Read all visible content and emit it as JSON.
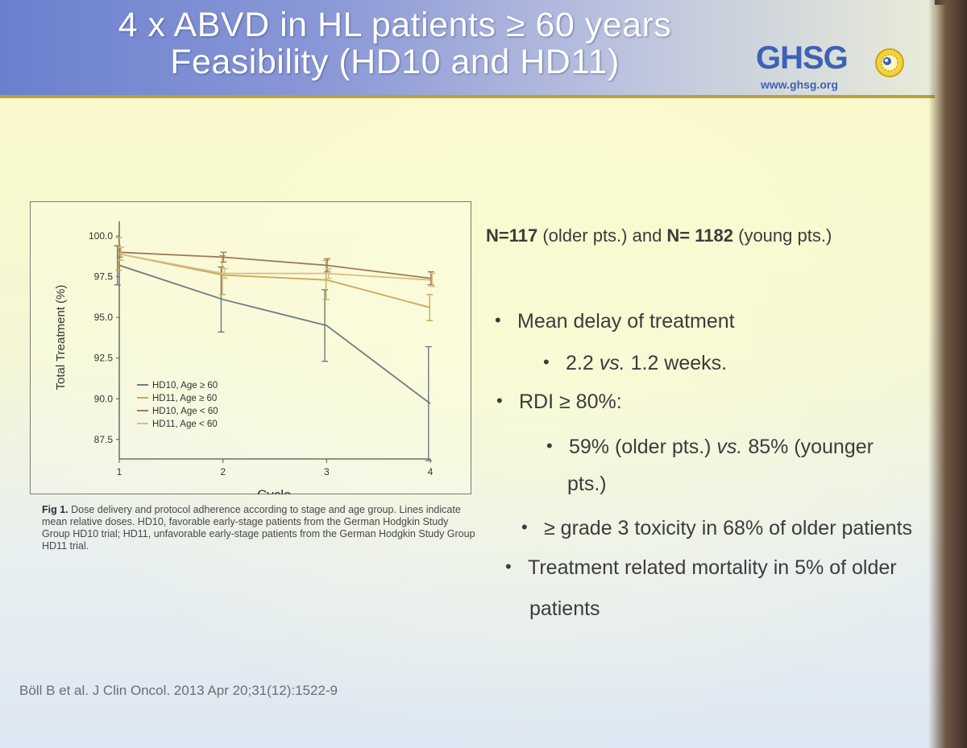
{
  "slide": {
    "title_line1": "4 x ABVD in HL patients ≥ 60 years",
    "title_line2": "Feasibility (HD10 and HD11)",
    "logo_text": "GHSG",
    "logo_url": "www.ghsg.org",
    "stats": {
      "n_label_1": "N=117",
      "n_text_1": " (older pts.) and ",
      "n_label_2": "N= 1182",
      "n_text_2": " (young pts.)",
      "bullet_delay": "Mean delay of treatment",
      "sub_delay_value": "2.2 ",
      "sub_delay_vs": "vs.",
      "sub_delay_rest": " 1.2 weeks.",
      "bullet_rdi": "RDI ≥ 80%:",
      "sub_rdi_a": "59% (older pts.) ",
      "sub_rdi_vs": "vs.",
      "sub_rdi_b": " 85% (younger",
      "sub_rdi_c": "pts.)",
      "bullet_tox": "≥ grade 3 toxicity in 68% of older patients",
      "bullet_mort_1": "Treatment related mortality in 5% of older",
      "bullet_mort_2": "patients",
      "bullet_symbol": "•"
    },
    "caption_label": "Fig 1.",
    "caption_text": " Dose delivery and protocol adherence according to stage and age group. Lines indicate mean relative doses. HD10, favorable early-stage patients from the German Hodgkin Study Group HD10 trial; HD11, unfavorable early-stage patients from the German Hodgkin Study Group HD11 trial.",
    "citation": "Böll B et al. J Clin Oncol. 2013 Apr 20;31(12):1522-9"
  },
  "chart_data": {
    "type": "line",
    "xlabel": "Cycle",
    "ylabel": "Total Treatment (%)",
    "x": [
      1,
      2,
      3,
      4
    ],
    "ylim": [
      86.5,
      100.5
    ],
    "yticks": [
      87.5,
      90.0,
      92.5,
      95.0,
      97.5,
      100.0
    ],
    "ytick_labels": [
      "87.5",
      "90.0",
      "92.5",
      "95.0",
      "97.5",
      "100.0"
    ],
    "xtick_labels": [
      "1",
      "2",
      "3",
      "4"
    ],
    "grid": false,
    "legend": "bottom-left",
    "series": [
      {
        "name": "HD10, Age ≥ 60",
        "color": "#6f7a82",
        "values": [
          98.2,
          96.1,
          94.5,
          89.7
        ],
        "err": [
          1.2,
          2.0,
          2.2,
          3.5
        ]
      },
      {
        "name": "HD11, Age ≥ 60",
        "color": "#c9a95a",
        "values": [
          98.9,
          97.6,
          97.3,
          95.6
        ],
        "err": [
          1.0,
          1.2,
          1.2,
          0.8
        ]
      },
      {
        "name": "HD10, Age < 60",
        "color": "#a07a56",
        "values": [
          99.0,
          98.7,
          98.2,
          97.4
        ],
        "err": [
          0.3,
          0.3,
          0.4,
          0.4
        ]
      },
      {
        "name": "HD11, Age < 60",
        "color": "#d6be86",
        "values": [
          98.9,
          97.7,
          97.7,
          97.3
        ],
        "err": [
          0.4,
          0.3,
          0.3,
          0.4
        ]
      }
    ]
  }
}
